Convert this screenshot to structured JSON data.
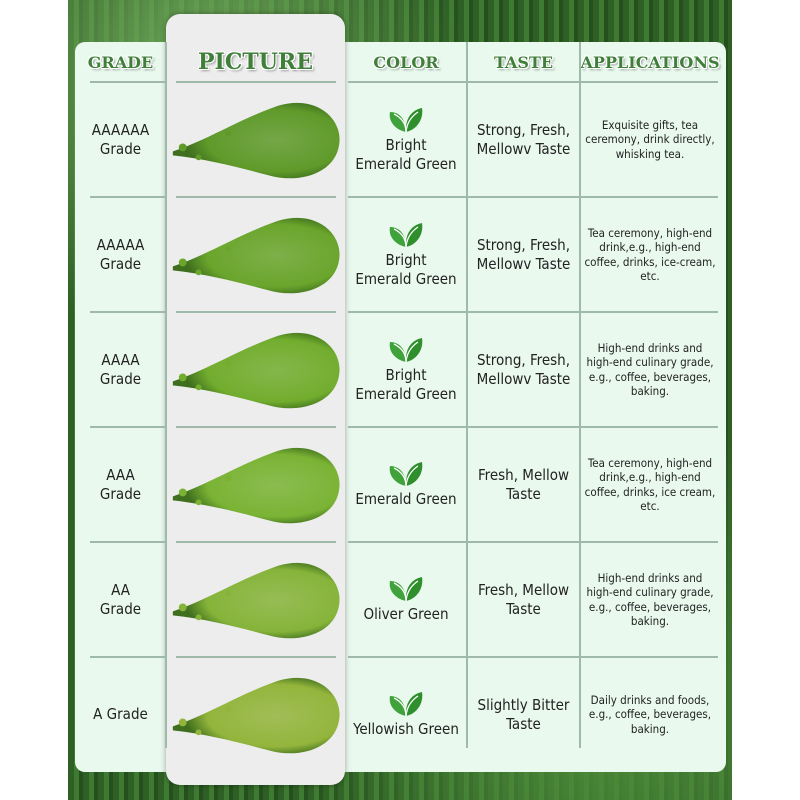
{
  "headers": {
    "grade": "GRADE",
    "picture": "PICTURE",
    "color": "COLOR",
    "taste": "TASTE",
    "applications": "APPLICATIONS"
  },
  "rows": [
    {
      "grade": "AAAAAA\nGrade",
      "powder_color": "#5f9a2a",
      "color": "Bright\nEmerald Green",
      "taste": "Strong, Fresh,\nMellowv Taste",
      "applications": "Exquisite gifts, tea ceremony, drink directly, whisking tea."
    },
    {
      "grade": "AAAAA\nGrade",
      "powder_color": "#6aa52c",
      "color": "Bright\nEmerald Green",
      "taste": "Strong, Fresh,\nMellowv Taste",
      "applications": "Tea ceremony, high-end drink,e.g., high-end coffee, drinks, ice-cream, etc."
    },
    {
      "grade": "AAAA\nGrade",
      "powder_color": "#72ad2e",
      "color": "Bright\nEmerald Green",
      "taste": "Strong, Fresh,\nMellowv Taste",
      "applications": "High-end drinks and high-end culinary grade, e.g., coffee, beverages, baking."
    },
    {
      "grade": "AAA\nGrade",
      "powder_color": "#7ab334",
      "color": "Emerald Green",
      "taste": "Fresh, Mellow\nTaste",
      "applications": "Tea ceremony, high-end drink,e.g., high-end coffee, drinks, ice cream, etc."
    },
    {
      "grade": "AA\nGrade",
      "powder_color": "#86b43a",
      "color": "Oliver Green",
      "taste": "Fresh, Mellow\nTaste",
      "applications": "High-end drinks and high-end culinary grade, e.g., coffee, beverages, baking."
    },
    {
      "grade": "A Grade",
      "powder_color": "#93b53c",
      "color": "Yellowish Green",
      "taste": "Slightly Bitter\nTaste",
      "applications": "Daily drinks and foods, e.g., coffee, beverages, baking."
    }
  ],
  "icons": {
    "color_cell": "leaf-icon"
  },
  "accent": "#3f7f3a"
}
